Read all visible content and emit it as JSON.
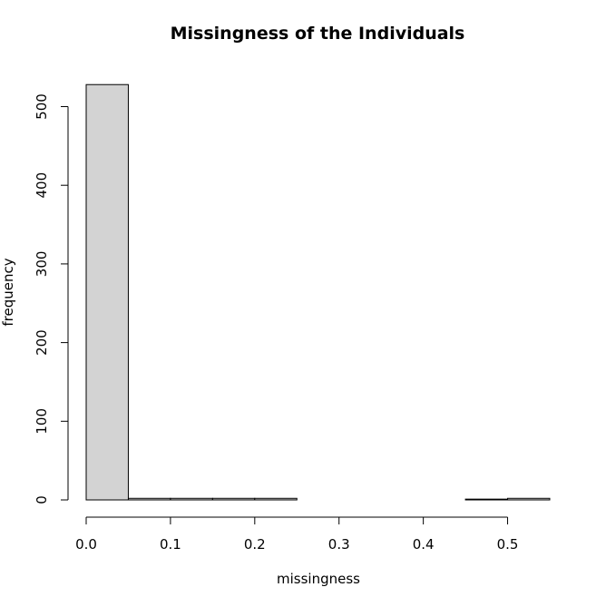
{
  "chart_data": {
    "type": "bar",
    "title": "Missingness of the Individuals",
    "xlabel": "missingness",
    "ylabel": "frequency",
    "bins": [
      {
        "x0": 0.0,
        "x1": 0.05,
        "count": 528
      },
      {
        "x0": 0.05,
        "x1": 0.1,
        "count": 2
      },
      {
        "x0": 0.1,
        "x1": 0.15,
        "count": 2
      },
      {
        "x0": 0.15,
        "x1": 0.2,
        "count": 2
      },
      {
        "x0": 0.2,
        "x1": 0.25,
        "count": 2
      },
      {
        "x0": 0.25,
        "x1": 0.3,
        "count": 0
      },
      {
        "x0": 0.3,
        "x1": 0.35,
        "count": 0
      },
      {
        "x0": 0.35,
        "x1": 0.4,
        "count": 0
      },
      {
        "x0": 0.4,
        "x1": 0.45,
        "count": 0
      },
      {
        "x0": 0.45,
        "x1": 0.5,
        "count": 1
      },
      {
        "x0": 0.5,
        "x1": 0.55,
        "count": 2
      }
    ],
    "xlim": [
      0.0,
      0.55
    ],
    "ylim": [
      0,
      528
    ],
    "x_ticks": [
      "0.0",
      "0.1",
      "0.2",
      "0.3",
      "0.4",
      "0.5"
    ],
    "y_ticks": [
      "0",
      "100",
      "200",
      "300",
      "400",
      "500"
    ],
    "bar_fill": "#d3d3d3",
    "bar_stroke": "#000000",
    "grid": false,
    "legend": "none"
  }
}
